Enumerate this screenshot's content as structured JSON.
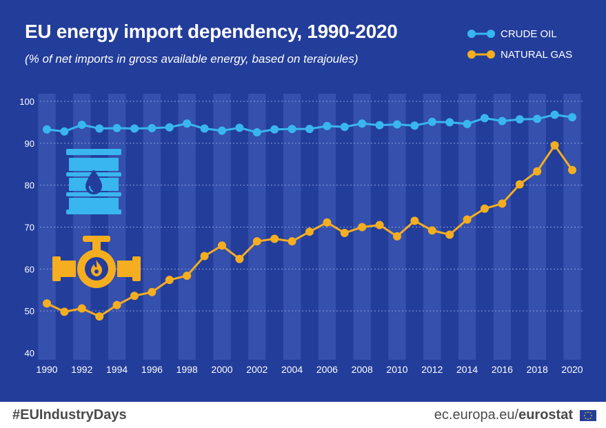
{
  "header": {
    "title": "EU energy import dependency, 1990-2020",
    "subtitle": "(% of net imports in gross available energy, based on terajoules)"
  },
  "footer": {
    "hashtag": "#EUIndustryDays",
    "source_prefix": "ec.europa.eu/",
    "source_brand": "eurostat"
  },
  "icons": [
    "oil-barrel-icon",
    "gas-pipeline-icon",
    "eu-flag-icon"
  ],
  "colors": {
    "background": "#233d9b",
    "band": "#3550ad",
    "crude_oil": "#39b6ef",
    "natural_gas": "#f5ae1f",
    "grid": "#8fa0d8"
  },
  "chart_data": {
    "type": "line",
    "title": "EU energy import dependency, 1990-2020",
    "subtitle": "(% of net imports in gross available energy, based on terajoules)",
    "xlabel": "",
    "ylabel": "",
    "x": [
      1990,
      1991,
      1992,
      1993,
      1994,
      1995,
      1996,
      1997,
      1998,
      1999,
      2000,
      2001,
      2002,
      2003,
      2004,
      2005,
      2006,
      2007,
      2008,
      2009,
      2010,
      2011,
      2012,
      2013,
      2014,
      2015,
      2016,
      2017,
      2018,
      2019,
      2020
    ],
    "xticks": [
      "1990",
      "1992",
      "1994",
      "1996",
      "1998",
      "2000",
      "2002",
      "2004",
      "2006",
      "2008",
      "2010",
      "2012",
      "2014",
      "2016",
      "2018",
      "2020"
    ],
    "yticks": [
      "40",
      "50",
      "60",
      "70",
      "80",
      "90",
      "100"
    ],
    "ylim": [
      40,
      100
    ],
    "grid": true,
    "legend_position": "top-right",
    "series": [
      {
        "name": "CRUDE OIL",
        "color": "#39b6ef",
        "values": [
          93.3,
          92.8,
          94.4,
          93.5,
          93.6,
          93.5,
          93.6,
          93.8,
          94.7,
          93.5,
          93.0,
          93.7,
          92.6,
          93.3,
          93.4,
          93.4,
          94.1,
          93.9,
          94.7,
          94.3,
          94.5,
          94.2,
          95.1,
          95.0,
          94.6,
          96.0,
          95.3,
          95.7,
          95.8,
          96.8,
          96.2
        ]
      },
      {
        "name": "NATURAL GAS",
        "color": "#f5ae1f",
        "values": [
          51.8,
          49.8,
          50.6,
          48.7,
          51.4,
          53.6,
          54.5,
          57.4,
          58.4,
          63.1,
          65.6,
          62.4,
          66.6,
          67.2,
          66.6,
          68.9,
          71.1,
          68.6,
          70.0,
          70.5,
          67.8,
          71.5,
          69.2,
          68.2,
          71.8,
          74.4,
          75.6,
          80.2,
          83.3,
          89.5,
          83.6
        ]
      }
    ]
  }
}
